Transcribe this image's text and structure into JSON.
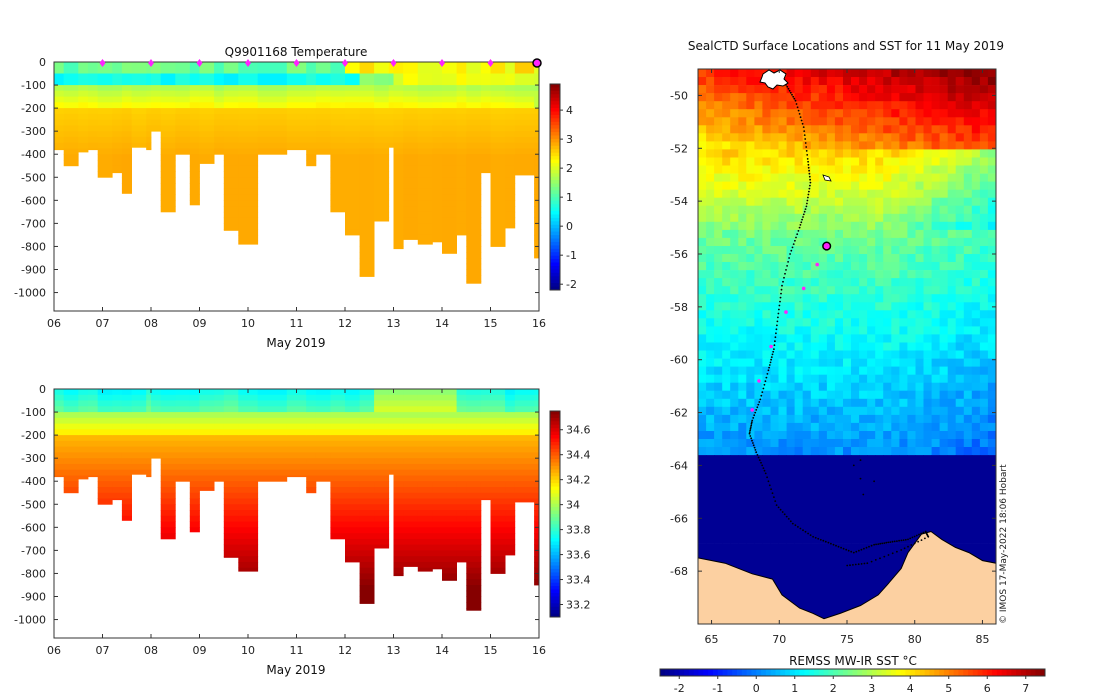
{
  "chart_data": [
    {
      "type": "heatmap",
      "title": "Q9901168  Temperature",
      "variable": "temperature",
      "xlabel": "May 2019",
      "x_ticks": [
        "06",
        "07",
        "08",
        "09",
        "10",
        "11",
        "12",
        "13",
        "14",
        "15",
        "16"
      ],
      "xlim": [
        6,
        16
      ],
      "ylim": [
        -1080,
        0
      ],
      "y_ticks": [
        0,
        -100,
        -200,
        -300,
        -400,
        -500,
        -600,
        -700,
        -800,
        -900,
        -1000
      ],
      "colorbar": {
        "min": -2.2,
        "max": 4.9,
        "ticks": [
          -2,
          -1,
          0,
          1,
          2,
          3,
          4
        ]
      },
      "profiles": [
        {
          "day": 6.0,
          "depth": 380
        },
        {
          "day": 6.2,
          "depth": 450
        },
        {
          "day": 6.5,
          "depth": 390
        },
        {
          "day": 6.7,
          "depth": 380
        },
        {
          "day": 6.9,
          "depth": 500
        },
        {
          "day": 7.2,
          "depth": 480
        },
        {
          "day": 7.4,
          "depth": 570
        },
        {
          "day": 7.6,
          "depth": 370
        },
        {
          "day": 7.9,
          "depth": 380
        },
        {
          "day": 8.0,
          "depth": 300
        },
        {
          "day": 8.2,
          "depth": 650
        },
        {
          "day": 8.5,
          "depth": 400
        },
        {
          "day": 8.8,
          "depth": 620
        },
        {
          "day": 9.0,
          "depth": 440
        },
        {
          "day": 9.3,
          "depth": 400
        },
        {
          "day": 9.5,
          "depth": 730
        },
        {
          "day": 9.8,
          "depth": 790
        },
        {
          "day": 10.2,
          "depth": 400
        },
        {
          "day": 10.8,
          "depth": 380
        },
        {
          "day": 11.2,
          "depth": 450
        },
        {
          "day": 11.4,
          "depth": 400
        },
        {
          "day": 11.7,
          "depth": 650
        },
        {
          "day": 12.0,
          "depth": 750
        },
        {
          "day": 12.3,
          "depth": 930
        },
        {
          "day": 12.6,
          "depth": 690
        },
        {
          "day": 12.9,
          "depth": 370
        },
        {
          "day": 13.0,
          "depth": 810
        },
        {
          "day": 13.2,
          "depth": 770
        },
        {
          "day": 13.5,
          "depth": 790
        },
        {
          "day": 13.8,
          "depth": 780
        },
        {
          "day": 14.0,
          "depth": 830
        },
        {
          "day": 14.3,
          "depth": 750
        },
        {
          "day": 14.5,
          "depth": 960
        },
        {
          "day": 14.8,
          "depth": 480
        },
        {
          "day": 15.0,
          "depth": 800
        },
        {
          "day": 15.3,
          "depth": 720
        },
        {
          "day": 15.5,
          "depth": 490
        },
        {
          "day": 15.9,
          "depth": 850
        }
      ],
      "markers_days": [
        7,
        8,
        9,
        10,
        11,
        12,
        13,
        14,
        15
      ],
      "current_marker_day": 16
    },
    {
      "type": "heatmap",
      "title": "",
      "variable": "salinity",
      "xlabel": "May 2019",
      "x_ticks": [
        "06",
        "07",
        "08",
        "09",
        "10",
        "11",
        "12",
        "13",
        "14",
        "15",
        "16"
      ],
      "xlim": [
        6,
        16
      ],
      "ylim": [
        -1080,
        0
      ],
      "y_ticks": [
        0,
        -100,
        -200,
        -300,
        -400,
        -500,
        -600,
        -700,
        -800,
        -900,
        -1000
      ],
      "colorbar": {
        "min": 33.1,
        "max": 34.75,
        "ticks": [
          33.2,
          33.4,
          33.6,
          33.8,
          34,
          34.2,
          34.4,
          34.6
        ]
      }
    },
    {
      "type": "map",
      "title": "SealCTD Surface Locations and SST for 11 May 2019",
      "xlim": [
        64,
        86
      ],
      "ylim": [
        -70,
        -49
      ],
      "x_ticks": [
        65,
        70,
        75,
        80,
        85
      ],
      "y_ticks": [
        -50,
        -52,
        -54,
        -56,
        -58,
        -60,
        -62,
        -64,
        -66,
        -68
      ],
      "colorbar_label": "REMSS MW-IR SST °C",
      "colorbar": {
        "min": -2.5,
        "max": 7.5,
        "ticks": [
          -2,
          -1,
          0,
          1,
          2,
          3,
          4,
          5,
          6,
          7
        ]
      },
      "current_position": {
        "lon": 73.5,
        "lat": -55.7
      },
      "credit": "© IMOS 17-May-2022 18:06 Hobart"
    }
  ]
}
